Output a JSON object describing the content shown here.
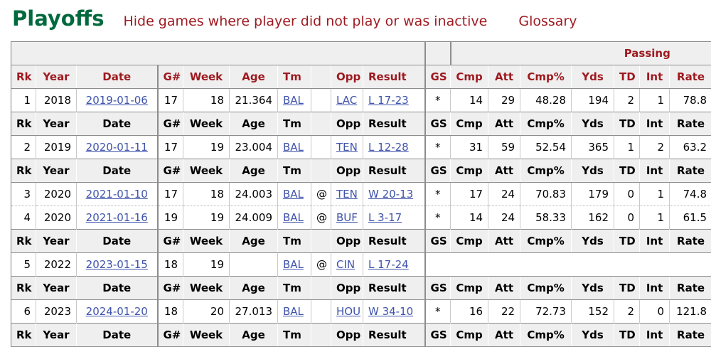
{
  "page": {
    "title": "Playoffs",
    "hide_toggle_label": "Hide games where player did not play or was inactive",
    "glossary_label": "Glossary"
  },
  "colors": {
    "title_green": "#00693e",
    "accent_red": "#9e191f",
    "link_blue": "#3f53ac",
    "header_bg": "#efefef"
  },
  "table": {
    "passing_group_label": "Passing",
    "columns": {
      "rk": "Rk",
      "year": "Year",
      "date": "Date",
      "g": "G#",
      "week": "Week",
      "age": "Age",
      "tm": "Tm",
      "at": "",
      "opp": "Opp",
      "result": "Result",
      "gs": "GS",
      "cmp": "Cmp",
      "att": "Att",
      "cmppct": "Cmp%",
      "yds": "Yds",
      "td": "TD",
      "int": "Int",
      "rate": "Rate",
      "extra": ""
    },
    "sections": [
      {
        "rows": [
          {
            "rk": "1",
            "year": "2018",
            "date": "2019-01-06",
            "g": "17",
            "week": "18",
            "age": "21.364",
            "tm": "BAL",
            "at": "",
            "opp": "LAC",
            "result": "L 17-23",
            "gs": "*",
            "cmp": "14",
            "att": "29",
            "cmppct": "48.28",
            "yds": "194",
            "td": "2",
            "int": "1",
            "rate": "78.8"
          }
        ]
      },
      {
        "rows": [
          {
            "rk": "2",
            "year": "2019",
            "date": "2020-01-11",
            "g": "17",
            "week": "19",
            "age": "23.004",
            "tm": "BAL",
            "at": "",
            "opp": "TEN",
            "result": "L 12-28",
            "gs": "*",
            "cmp": "31",
            "att": "59",
            "cmppct": "52.54",
            "yds": "365",
            "td": "1",
            "int": "2",
            "rate": "63.2"
          }
        ]
      },
      {
        "rows": [
          {
            "rk": "3",
            "year": "2020",
            "date": "2021-01-10",
            "g": "17",
            "week": "18",
            "age": "24.003",
            "tm": "BAL",
            "at": "@",
            "opp": "TEN",
            "result": "W 20-13",
            "gs": "*",
            "cmp": "17",
            "att": "24",
            "cmppct": "70.83",
            "yds": "179",
            "td": "0",
            "int": "1",
            "rate": "74.8"
          },
          {
            "rk": "4",
            "year": "2020",
            "date": "2021-01-16",
            "g": "19",
            "week": "19",
            "age": "24.009",
            "tm": "BAL",
            "at": "@",
            "opp": "BUF",
            "result": "L 3-17",
            "gs": "*",
            "cmp": "14",
            "att": "24",
            "cmppct": "58.33",
            "yds": "162",
            "td": "0",
            "int": "1",
            "rate": "61.5"
          }
        ]
      },
      {
        "rows": [
          {
            "rk": "5",
            "year": "2022",
            "date": "2023-01-15",
            "g": "18",
            "week": "19",
            "age": "",
            "tm": "BAL",
            "at": "@",
            "opp": "CIN",
            "result": "L 17-24",
            "stats_blank": true
          }
        ]
      },
      {
        "rows": [
          {
            "rk": "6",
            "year": "2023",
            "date": "2024-01-20",
            "g": "18",
            "week": "20",
            "age": "27.013",
            "tm": "BAL",
            "at": "",
            "opp": "HOU",
            "result": "W 34-10",
            "gs": "*",
            "cmp": "16",
            "att": "22",
            "cmppct": "72.73",
            "yds": "152",
            "td": "2",
            "int": "0",
            "rate": "121.8"
          }
        ]
      },
      {
        "rows": []
      }
    ]
  }
}
